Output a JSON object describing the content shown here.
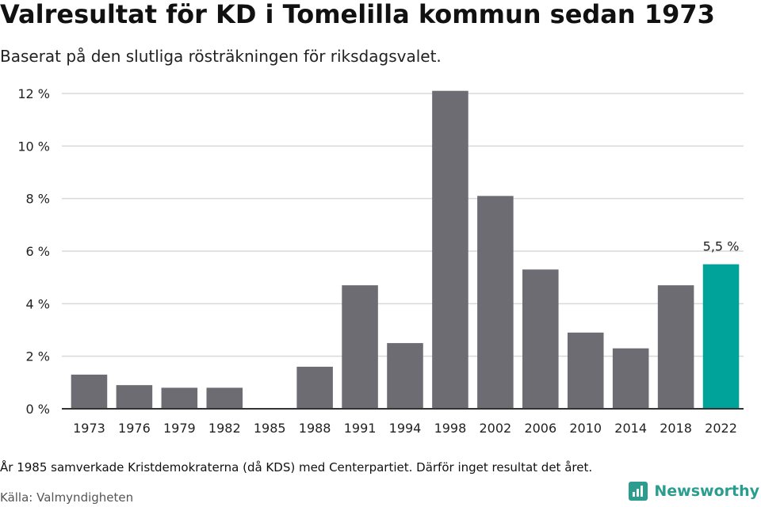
{
  "header": {
    "title": "Valresultat för KD i Tomelilla kommun sedan 1973",
    "subtitle": "Baserat på den slutliga rösträkningen för riksdagsvalet."
  },
  "chart_data": {
    "type": "bar",
    "title": "Valresultat för KD i Tomelilla kommun sedan 1973",
    "subtitle": "Baserat på den slutliga rösträkningen för riksdagsvalet.",
    "xlabel": "",
    "ylabel": "",
    "categories": [
      "1973",
      "1976",
      "1979",
      "1982",
      "1985",
      "1988",
      "1991",
      "1994",
      "1998",
      "2002",
      "2006",
      "2010",
      "2014",
      "2018",
      "2022"
    ],
    "values": [
      1.3,
      0.9,
      0.8,
      0.8,
      null,
      1.6,
      4.7,
      2.5,
      12.1,
      8.1,
      5.3,
      2.9,
      2.3,
      4.7,
      5.5
    ],
    "ylim": [
      0,
      12
    ],
    "yticks": [
      0,
      2,
      4,
      6,
      8,
      10,
      12
    ],
    "ytick_labels": [
      "0 %",
      "2 %",
      "4 %",
      "6 %",
      "8 %",
      "10 %",
      "12 %"
    ],
    "grid": true,
    "highlight_index": 14,
    "highlight_label": "5,5 %",
    "colors": {
      "bar": "#6d6c72",
      "highlight": "#00a39a",
      "grid": "#d9d9d9",
      "axis": "#333333"
    }
  },
  "footer": {
    "note": "År 1985 samverkade Kristdemokraterna (då KDS) med Centerpartiet. Därför inget resultat det året.",
    "source": "Källa: Valmyndigheten",
    "brand": "Newsworthy"
  },
  "brand_color": "#2a9d8f"
}
